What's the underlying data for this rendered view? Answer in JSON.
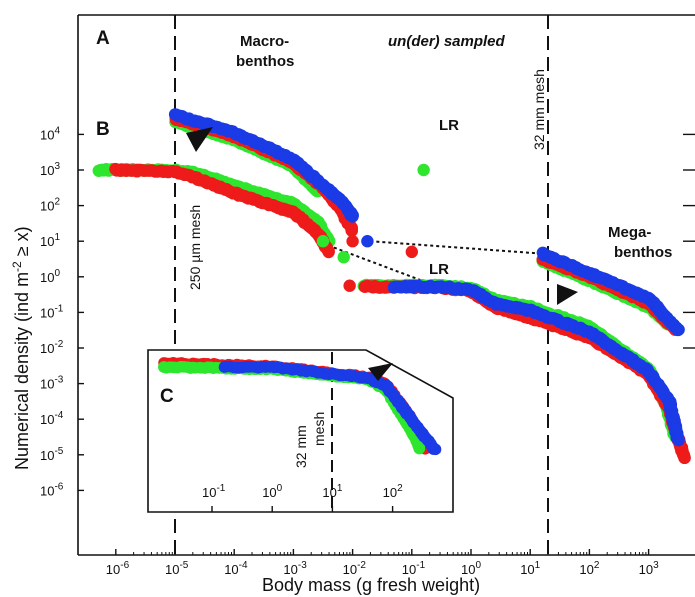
{
  "chart_data": {
    "type": "scatter",
    "xlabel": "Body mass (g fresh weight)",
    "ylabel": "Numerical density (ind m",
    "ylabel_sup": "-2",
    "ylabel_tail": " ≥ x)",
    "x_scale": "log",
    "y_scale": "log",
    "xlim_log10": [
      -6.6,
      3.7
    ],
    "ylim_log10": [
      -6,
      5.7
    ],
    "x_ticks": [
      {
        "base": "10",
        "exp": "-6",
        "v": -6
      },
      {
        "base": "10",
        "exp": "-5",
        "v": -5
      },
      {
        "base": "10",
        "exp": "-4",
        "v": -4
      },
      {
        "base": "10",
        "exp": "-3",
        "v": -3
      },
      {
        "base": "10",
        "exp": "-2",
        "v": -2
      },
      {
        "base": "10",
        "exp": "-1",
        "v": -1
      },
      {
        "base": "10",
        "exp": "0",
        "v": 0
      },
      {
        "base": "10",
        "exp": "1",
        "v": 1
      },
      {
        "base": "10",
        "exp": "2",
        "v": 2
      },
      {
        "base": "10",
        "exp": "3",
        "v": 3
      }
    ],
    "y_ticks": [
      {
        "base": "10",
        "exp": "-6",
        "v": -6
      },
      {
        "base": "10",
        "exp": "-5",
        "v": -5
      },
      {
        "base": "10",
        "exp": "-4",
        "v": -4
      },
      {
        "base": "10",
        "exp": "-3",
        "v": -3
      },
      {
        "base": "10",
        "exp": "-2",
        "v": -2
      },
      {
        "base": "10",
        "exp": "-1",
        "v": -1
      },
      {
        "base": "10",
        "exp": "0",
        "v": 0
      },
      {
        "base": "10",
        "exp": "1",
        "v": 1
      },
      {
        "base": "10",
        "exp": "2",
        "v": 2
      },
      {
        "base": "10",
        "exp": "3",
        "v": 3
      },
      {
        "base": "10",
        "exp": "4",
        "v": 4
      }
    ],
    "panel_labels": [
      "A",
      "B",
      "C"
    ],
    "annotations": {
      "macro_1": "Macro-",
      "macro_2": "benthos",
      "mega_1": "Mega-",
      "mega_2": "benthos",
      "undersampled": "un(der) sampled",
      "mesh_left": "250 µm mesh",
      "mesh_right": "32 mm mesh",
      "inset_mesh_1": "32 mm",
      "inset_mesh_2": "mesh",
      "lr": "LR"
    },
    "colors": {
      "red": "#ee1b1b",
      "green": "#2ee62e",
      "blue": "#1a3be6"
    },
    "series_A": [
      {
        "color": "green",
        "points": [
          [
            -5,
            4.35
          ],
          [
            -4,
            3.85
          ],
          [
            -3,
            3.1
          ],
          [
            -2.6,
            2.4
          ]
        ]
      },
      {
        "color": "red",
        "points": [
          [
            -5,
            4.45
          ],
          [
            -4,
            3.95
          ],
          [
            -3,
            3.2
          ],
          [
            -2.5,
            2.5
          ],
          [
            -2.2,
            1.9
          ],
          [
            -2.0,
            1.3
          ]
        ]
      },
      {
        "color": "blue",
        "points": [
          [
            -5,
            4.55
          ],
          [
            -4,
            4.05
          ],
          [
            -3,
            3.3
          ],
          [
            -2.6,
            2.7
          ],
          [
            -2.2,
            2.15
          ],
          [
            -2,
            1.7
          ]
        ]
      },
      {
        "color": "green",
        "points": [
          [
            1.2,
            0.45
          ],
          [
            2,
            -0.1
          ],
          [
            3,
            -0.85
          ],
          [
            3.35,
            -1.35
          ]
        ]
      },
      {
        "color": "red",
        "points": [
          [
            1.2,
            0.5
          ],
          [
            2,
            0
          ],
          [
            3,
            -0.75
          ],
          [
            3.45,
            -1.5
          ]
        ]
      },
      {
        "color": "blue",
        "points": [
          [
            1.2,
            0.65
          ],
          [
            2,
            0.1
          ],
          [
            3,
            -0.6
          ],
          [
            3.5,
            -1.5
          ]
        ]
      }
    ],
    "isolated_A": [
      {
        "color": "red",
        "x": -2.0,
        "y": 1.0
      },
      {
        "color": "blue",
        "x": -1.75,
        "y": 1.0
      },
      {
        "color": "green",
        "x": -0.8,
        "y": 3.0,
        "label": "LR"
      }
    ],
    "series_B": [
      {
        "color": "green",
        "points": [
          [
            -6.3,
            3
          ],
          [
            -5,
            3
          ],
          [
            -4.6,
            2.9
          ],
          [
            -4,
            2.55
          ],
          [
            -3,
            2.05
          ],
          [
            -2.6,
            1.55
          ],
          [
            -2.4,
            1
          ]
        ]
      },
      {
        "color": "red",
        "points": [
          [
            -6,
            3
          ],
          [
            -5,
            2.95
          ],
          [
            -4.6,
            2.75
          ],
          [
            -4,
            2.35
          ],
          [
            -3,
            1.8
          ],
          [
            -2.6,
            1.25
          ],
          [
            -2.4,
            0.7
          ]
        ]
      },
      {
        "color": "green",
        "points": [
          [
            -1.8,
            -0.25
          ],
          [
            -0.5,
            -0.25
          ],
          [
            0,
            -0.32
          ],
          [
            0.4,
            -0.65
          ],
          [
            1,
            -0.85
          ],
          [
            2,
            -1.4
          ],
          [
            3,
            -2.6
          ],
          [
            3.3,
            -3.6
          ],
          [
            3.45,
            -4.5
          ]
        ]
      },
      {
        "color": "red",
        "points": [
          [
            -1.8,
            -0.28
          ],
          [
            -0.5,
            -0.3
          ],
          [
            0,
            -0.4
          ],
          [
            0.4,
            -0.85
          ],
          [
            1,
            -1.15
          ],
          [
            2,
            -1.7
          ],
          [
            3,
            -2.75
          ],
          [
            3.35,
            -3.7
          ],
          [
            3.6,
            -5.1
          ]
        ]
      },
      {
        "color": "blue",
        "points": [
          [
            -1.3,
            -0.28
          ],
          [
            -0.5,
            -0.28
          ],
          [
            0,
            -0.36
          ],
          [
            0.4,
            -0.75
          ],
          [
            1,
            -0.95
          ],
          [
            2,
            -1.55
          ],
          [
            3,
            -2.65
          ],
          [
            3.35,
            -3.5
          ],
          [
            3.5,
            -4.6
          ]
        ]
      }
    ],
    "isolated_B": [
      {
        "color": "green",
        "x": -2.5,
        "y": 1.0
      },
      {
        "color": "green",
        "x": -2.15,
        "y": 0.55
      },
      {
        "color": "red",
        "x": -2.05,
        "y": -0.25
      },
      {
        "color": "red",
        "x": -1.0,
        "y": 0.7,
        "label": "LR"
      }
    ],
    "inset_C": {
      "x_ticks": [
        {
          "base": "10",
          "exp": "-1",
          "v": -1
        },
        {
          "base": "10",
          "exp": "0",
          "v": 0
        },
        {
          "base": "10",
          "exp": "1",
          "v": 1
        },
        {
          "base": "10",
          "exp": "2",
          "v": 2
        }
      ],
      "series": [
        {
          "color": "red",
          "points": [
            [
              -1.8,
              -2.0
            ],
            [
              0,
              -2.12
            ],
            [
              1.6,
              -2.52
            ],
            [
              1.9,
              -2.8
            ],
            [
              2.3,
              -4
            ],
            [
              2.55,
              -5.1
            ]
          ]
        },
        {
          "color": "green",
          "points": [
            [
              -1.8,
              -2.15
            ],
            [
              0,
              -2.22
            ],
            [
              1.6,
              -2.6
            ],
            [
              1.9,
              -3
            ],
            [
              2.3,
              -4.4
            ],
            [
              2.45,
              -5.1
            ]
          ]
        },
        {
          "color": "blue",
          "points": [
            [
              -0.8,
              -2.15
            ],
            [
              0,
              -2.15
            ],
            [
              1.6,
              -2.55
            ],
            [
              1.9,
              -2.85
            ],
            [
              2.3,
              -4
            ],
            [
              2.7,
              -5.15
            ]
          ]
        }
      ]
    }
  }
}
